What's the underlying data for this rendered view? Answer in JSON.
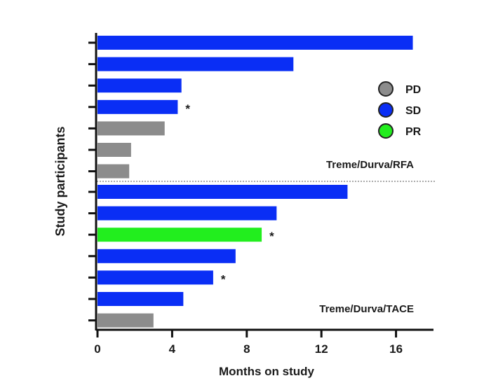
{
  "chart_data": {
    "type": "bar",
    "orientation": "horizontal",
    "xlabel": "Months on study",
    "ylabel": "Study participants",
    "xlim": [
      0,
      18
    ],
    "xticks": [
      0,
      4,
      8,
      12,
      16
    ],
    "colors": {
      "PD": "#8c8c8c",
      "SD": "#0a2ef5",
      "PR": "#22ee1e"
    },
    "legend": {
      "position": "right",
      "entries": [
        {
          "label": "PD",
          "status": "PD"
        },
        {
          "label": "SD",
          "status": "SD"
        },
        {
          "label": "PR",
          "status": "PR"
        }
      ]
    },
    "groups": [
      {
        "name": "Treme/Durva/RFA",
        "bars": [
          {
            "value": 16.9,
            "status": "SD",
            "mark": ""
          },
          {
            "value": 10.5,
            "status": "SD",
            "mark": ""
          },
          {
            "value": 4.5,
            "status": "SD",
            "mark": ""
          },
          {
            "value": 4.3,
            "status": "SD",
            "mark": "*"
          },
          {
            "value": 3.6,
            "status": "PD",
            "mark": ""
          },
          {
            "value": 1.8,
            "status": "PD",
            "mark": ""
          },
          {
            "value": 1.7,
            "status": "PD",
            "mark": ""
          }
        ]
      },
      {
        "name": "Treme/Durva/TACE",
        "bars": [
          {
            "value": 13.4,
            "status": "SD",
            "mark": ""
          },
          {
            "value": 9.6,
            "status": "SD",
            "mark": ""
          },
          {
            "value": 8.8,
            "status": "PR",
            "mark": "*"
          },
          {
            "value": 7.4,
            "status": "SD",
            "mark": ""
          },
          {
            "value": 6.2,
            "status": "SD",
            "mark": "*"
          },
          {
            "value": 4.6,
            "status": "SD",
            "mark": ""
          },
          {
            "value": 3.0,
            "status": "PD",
            "mark": ""
          }
        ]
      }
    ]
  }
}
